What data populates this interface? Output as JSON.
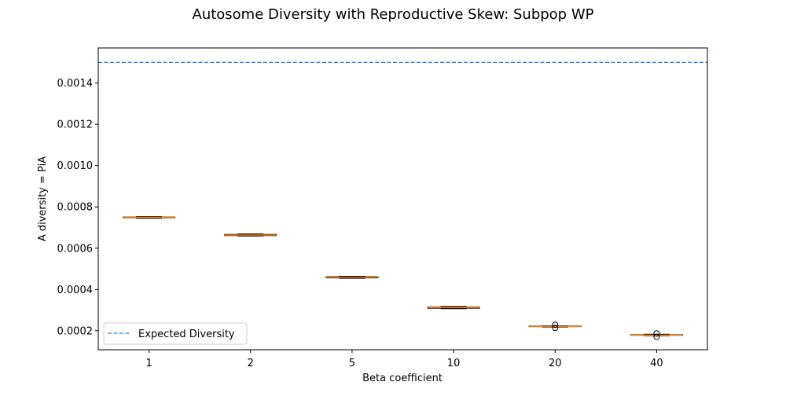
{
  "chart_data": {
    "type": "box",
    "title": "Autosome Diversity with Reproductive Skew: Subpop WP",
    "xlabel": "Beta coefficient",
    "ylabel": "A diversity = PiA",
    "categories": [
      "1",
      "2",
      "5",
      "10",
      "20",
      "40"
    ],
    "ylim": [
      0.000108,
      0.00157
    ],
    "yticks": [
      0.0002,
      0.0004,
      0.0006,
      0.0008,
      0.001,
      0.0012,
      0.0014
    ],
    "ytick_labels": [
      "0.0002",
      "0.0004",
      "0.0006",
      "0.0008",
      "0.0010",
      "0.0012",
      "0.0014"
    ],
    "boxes": [
      {
        "category": "1",
        "whislo": 0.000745,
        "q1": 0.000747,
        "med": 0.000749,
        "q3": 0.000751,
        "whishi": 0.000753,
        "fliers": []
      },
      {
        "category": "2",
        "whislo": 0.000659,
        "q1": 0.000661,
        "med": 0.000664,
        "q3": 0.000667,
        "whishi": 0.000669,
        "fliers": []
      },
      {
        "category": "5",
        "whislo": 0.000454,
        "q1": 0.000456,
        "med": 0.000459,
        "q3": 0.000462,
        "whishi": 0.000464,
        "fliers": []
      },
      {
        "category": "10",
        "whislo": 0.000307,
        "q1": 0.000309,
        "med": 0.000312,
        "q3": 0.000315,
        "whishi": 0.000318,
        "fliers": []
      },
      {
        "category": "20",
        "whislo": 0.000218,
        "q1": 0.00022,
        "med": 0.000221,
        "q3": 0.000223,
        "whishi": 0.000224,
        "fliers": [
          0.000214,
          0.000229
        ]
      },
      {
        "category": "40",
        "whislo": 0.000176,
        "q1": 0.000178,
        "med": 0.000179,
        "q3": 0.000181,
        "whishi": 0.000183,
        "fliers": [
          0.000171,
          0.000187
        ]
      }
    ],
    "reference_line": {
      "label": "Expected Diversity",
      "y": 0.0015,
      "color": "#1f77ff",
      "style": "dashed"
    },
    "legend": {
      "position": "lower-left",
      "entries": [
        "Expected Diversity"
      ]
    },
    "grid": false,
    "colors": {
      "median": "#ff7f0e",
      "box": "#000000"
    }
  }
}
